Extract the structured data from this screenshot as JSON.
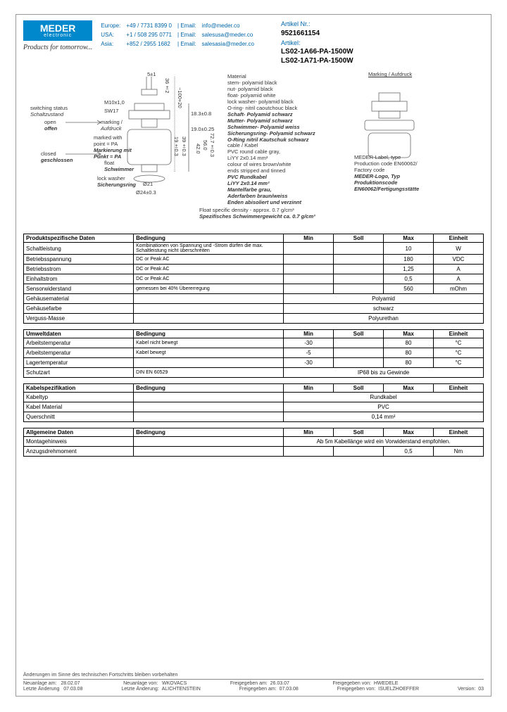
{
  "logo": {
    "name": "MEDER",
    "sub": "electronic"
  },
  "slogan": "Products for tomorrow...",
  "contact": {
    "rows": [
      {
        "region": "Europe:",
        "phone": "+49 / 7731 8399 0",
        "emailLabel": "| Email:",
        "email": "info@meder.co"
      },
      {
        "region": "USA:",
        "phone": "+1 / 508 295 0771",
        "emailLabel": "| Email:",
        "email": "salesusa@meder.co"
      },
      {
        "region": "Asia:",
        "phone": "+852 / 2955 1682",
        "emailLabel": "| Email:",
        "email": "salesasia@meder.co"
      }
    ]
  },
  "artikel": {
    "nrLabel": "Artikel Nr.:",
    "nr": "9521661154",
    "label": "Artikel:",
    "lines": [
      "LS02-1A66-PA-1500W",
      "LS02-1A71-PA-1500W"
    ]
  },
  "diagram": {
    "switching": "switching status",
    "schalt": "Schaltzustand",
    "open": "open",
    "offen": "offen",
    "closed": "closed",
    "geschlossen": "geschlossen",
    "marking": "marking /",
    "aufdruck": "Aufdruck",
    "markedWith": "marked with",
    "point": "point = PA",
    "markierung": "Markierung mit",
    "punkt": "Punkt = PA",
    "float": "float",
    "schwimmer": "Schwimmer",
    "lockwasher": "lock washer",
    "sicherung": "Sicherungsring",
    "m10": "M10x1,0",
    "sw17": "SW17",
    "d5": "5±1",
    "d36": "36±2",
    "d100": "~100+20",
    "d183": "18.3±0.8",
    "d19": "19.0±0.25",
    "d193": "19±0.3",
    "d39": "39±0.3",
    "d42": "42.0",
    "d56": "56.0",
    "d72": "72.7±0.3",
    "d21": "Ø21",
    "d24": "Ø24±0.3",
    "material": "Material",
    "mat1": "stem- polyamid black",
    "mat2": "nut- polyamid black",
    "mat3": "float- polyamid white",
    "mat4": "lock washer- polyamid black",
    "mat5": "O-ring- nitril caoutchouc black",
    "mati1": "Schaft- Polyamid schwarz",
    "mati2": "Mutter- Polyamid schwarz",
    "mati3": "Schwimmer- Polyamid weiss",
    "mati4": "Sicherungsring- Polyamid schwarz",
    "mati5": "O-Ring nitril Kautschuk schwarz",
    "cable": "cable / Kabel",
    "cab1": "PVC round cable gray,",
    "cab2": "LiYY 2x0.14 mm²",
    "cab3": "colour of wires brown/white",
    "cab4": "ends stripped and tinned",
    "cabi1": "PVC Rundkabel",
    "cabi2": "LiYY 2x0.14 mm²",
    "cabi3": "Mantelfarbe grau,",
    "cabi4": "Aderfarben braun/weiss",
    "cabi5": "Enden abisoliert und verzinnt",
    "density": "Float specific density - approx. 0.7 g/cm³",
    "densityi": "Spezifisches Schwimmergewicht ca. 0.7 g/cm³",
    "markingTitle": "Marking / Aufdruck",
    "mlabel1": "MEDER-Label, type",
    "mlabel2": "Production code EN60062/",
    "mlabel3": "Factory code",
    "mlabeli1": "MEDER-Logo, Typ",
    "mlabeli2": "Produktionscode",
    "mlabeli3": "EN60062/Fertigungsstätte"
  },
  "tables": {
    "t1": {
      "title": "Produktspezifische Daten",
      "headers": [
        "Bedingung",
        "Min",
        "Soll",
        "Max",
        "Einheit"
      ],
      "rows": [
        {
          "p": "Schaltleistung",
          "c": "Kombinationen von Spannung und -Strom dürfen die max. Schaltleistung nicht überschreiten",
          "min": "",
          "soll": "",
          "max": "10",
          "u": "W"
        },
        {
          "p": "Betriebsspannung",
          "c": "DC or Peak AC",
          "min": "",
          "soll": "",
          "max": "180",
          "u": "VDC"
        },
        {
          "p": "Betriebsstrom",
          "c": "DC or Peak AC",
          "min": "",
          "soll": "",
          "max": "1,25",
          "u": "A"
        },
        {
          "p": "Einhaltstrom",
          "c": "DC or Peak AC",
          "min": "",
          "soll": "",
          "max": "0,5",
          "u": "A"
        },
        {
          "p": "Sensorwiderstand",
          "c": "gemessen bei 40% Übererregung",
          "min": "",
          "soll": "",
          "max": "560",
          "u": "mOhm"
        },
        {
          "p": "Gehäusematerial",
          "c": "",
          "span": "Polyamid"
        },
        {
          "p": "Gehäusefarbe",
          "c": "",
          "span": "schwarz"
        },
        {
          "p": "Verguss-Masse",
          "c": "",
          "span": "Polyurethan"
        }
      ]
    },
    "t2": {
      "title": "Umweltdaten",
      "headers": [
        "Bedingung",
        "Min",
        "Soll",
        "Max",
        "Einheit"
      ],
      "rows": [
        {
          "p": "Arbeitstemperatur",
          "c": "Kabel nicht bewegt",
          "min": "-30",
          "soll": "",
          "max": "80",
          "u": "°C"
        },
        {
          "p": "Arbeitstemperatur",
          "c": "Kabel bewegt",
          "min": "-5",
          "soll": "",
          "max": "80",
          "u": "°C"
        },
        {
          "p": "Lagertemperatur",
          "c": "",
          "min": "-30",
          "soll": "",
          "max": "80",
          "u": "°C"
        },
        {
          "p": "Schutzart",
          "c": "DIN EN 60529",
          "span": "IP68 bis zu Gewinde"
        }
      ]
    },
    "t3": {
      "title": "Kabelspezifikation",
      "headers": [
        "Bedingung",
        "Min",
        "Soll",
        "Max",
        "Einheit"
      ],
      "rows": [
        {
          "p": "Kabeltyp",
          "c": "",
          "span": "Rundkabel"
        },
        {
          "p": "Kabel Material",
          "c": "",
          "span": "PVC"
        },
        {
          "p": "Querschnitt",
          "c": "",
          "span": "0,14 mm²"
        }
      ]
    },
    "t4": {
      "title": "Allgemeine Daten",
      "headers": [
        "Bedingung",
        "Min",
        "Soll",
        "Max",
        "Einheit"
      ],
      "rows": [
        {
          "p": "Montagehinweis",
          "c": "",
          "span": "Ab 5m Kabellänge wird ein Vorwiderstand empfohlen."
        },
        {
          "p": "Anzugsdrehmoment",
          "c": "",
          "min": "",
          "soll": "",
          "max": "0,5",
          "u": "Nm"
        }
      ]
    }
  },
  "footer": {
    "note": "Änderungen im Sinne des technischen Fortschritts bleiben vorbehalten",
    "r1": {
      "a": "Neuanlage am:",
      "av": "28.02.07",
      "b": "Neuanlage von:",
      "bv": "WKOVACS",
      "c": "Freigegeben am:",
      "cv": "26.03.07",
      "d": "Freigegeben von:",
      "dv": "HWEDELE"
    },
    "r2": {
      "a": "Letzte Änderung",
      "av": "07.03.08",
      "b": "Letzte Änderung:",
      "bv": "ALICHTENSTEIN",
      "c": "Freigegeben am:",
      "cv": "07.03.08",
      "d": "Freigegeben von:",
      "dv": "ISUELZHOEFFER",
      "e": "Version:",
      "ev": "03"
    }
  }
}
